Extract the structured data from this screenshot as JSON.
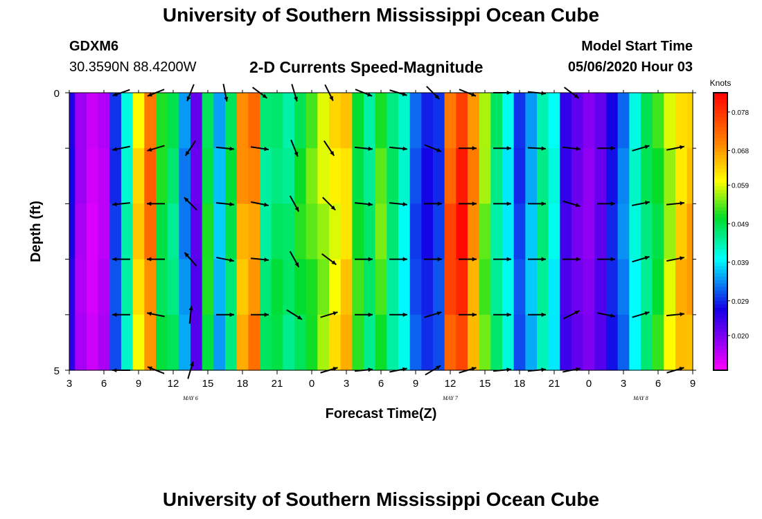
{
  "header": {
    "title": "University of Southern Mississippi Ocean Cube",
    "station": "GDXM6",
    "coordinates": "30.3590N 88.4200W",
    "chart_title": "2-D Currents Speed-Magnitude",
    "model_start_label": "Model Start Time",
    "model_start_time": "05/06/2020 Hour 03"
  },
  "footer": {
    "title": "University of Southern Mississippi Ocean Cube"
  },
  "chart_data": {
    "type": "heatmap",
    "title": "2-D Currents Speed-Magnitude",
    "xlabel": "Forecast Time(Z)",
    "ylabel": "Depth (ft)",
    "xlim": [
      0,
      54
    ],
    "ylim": [
      0,
      5
    ],
    "y_tick_labels": [
      "0",
      "5"
    ],
    "x_tick_labels": [
      "3",
      "6",
      "9",
      "12",
      "15",
      "18",
      "21",
      "0",
      "3",
      "6",
      "9",
      "12",
      "15",
      "18",
      "21",
      "0",
      "3",
      "6",
      "9"
    ],
    "date_labels": [
      {
        "text": "MAY 6",
        "hour": 10.5
      },
      {
        "text": "MAY 7",
        "hour": 33
      },
      {
        "text": "MAY 8",
        "hour": 49.5
      }
    ],
    "colorbar": {
      "units": "Knots",
      "min": 0.011,
      "max": 0.083,
      "tick_labels": [
        "0.078",
        "0.068",
        "0.059",
        "0.049",
        "0.039",
        "0.029",
        "0.020"
      ],
      "tick_values": [
        0.078,
        0.068,
        0.059,
        0.049,
        0.039,
        0.029,
        0.02
      ]
    },
    "depth_levels": [
      0,
      1,
      2,
      3,
      4,
      5
    ],
    "speed_by_hour": [
      [
        0,
        0.026
      ],
      [
        1,
        0.017
      ],
      [
        2,
        0.014
      ],
      [
        3,
        0.016
      ],
      [
        4,
        0.03
      ],
      [
        5,
        0.043
      ],
      [
        6,
        0.062
      ],
      [
        7,
        0.071
      ],
      [
        8,
        0.05
      ],
      [
        9,
        0.047
      ],
      [
        10,
        0.034
      ],
      [
        11,
        0.022
      ],
      [
        12,
        0.05
      ],
      [
        13,
        0.036
      ],
      [
        14,
        0.048
      ],
      [
        15,
        0.067
      ],
      [
        16,
        0.07
      ],
      [
        17,
        0.046
      ],
      [
        18,
        0.048
      ],
      [
        19,
        0.046
      ],
      [
        20,
        0.05
      ],
      [
        21,
        0.053
      ],
      [
        22,
        0.057
      ],
      [
        23,
        0.061
      ],
      [
        24,
        0.064
      ],
      [
        25,
        0.051
      ],
      [
        26,
        0.046
      ],
      [
        27,
        0.053
      ],
      [
        28,
        0.046
      ],
      [
        29,
        0.041
      ],
      [
        30,
        0.031
      ],
      [
        31,
        0.028
      ],
      [
        32,
        0.03
      ],
      [
        33,
        0.074
      ],
      [
        34,
        0.079
      ],
      [
        35,
        0.068
      ],
      [
        36,
        0.055
      ],
      [
        37,
        0.046
      ],
      [
        38,
        0.04
      ],
      [
        39,
        0.03
      ],
      [
        40,
        0.036
      ],
      [
        41,
        0.045
      ],
      [
        42,
        0.04
      ],
      [
        43,
        0.024
      ],
      [
        44,
        0.021
      ],
      [
        45,
        0.019
      ],
      [
        46,
        0.022
      ],
      [
        47,
        0.028
      ],
      [
        48,
        0.033
      ],
      [
        49,
        0.041
      ],
      [
        50,
        0.047
      ],
      [
        51,
        0.051
      ],
      [
        52,
        0.058
      ],
      [
        53,
        0.064
      ],
      [
        54,
        0.066
      ]
    ],
    "vectors": [
      {
        "hour": 4.5,
        "depth": 0,
        "u": -1,
        "v": -0.35
      },
      {
        "hour": 7.5,
        "depth": 0,
        "u": -1,
        "v": -0.4
      },
      {
        "hour": 10.5,
        "depth": 0,
        "u": -0.4,
        "v": -1
      },
      {
        "hour": 13.5,
        "depth": 0,
        "u": 0.2,
        "v": -1
      },
      {
        "hour": 16.5,
        "depth": 0,
        "u": 0.8,
        "v": -0.6
      },
      {
        "hour": 19.5,
        "depth": 0,
        "u": 0.3,
        "v": -1
      },
      {
        "hour": 22.5,
        "depth": 0,
        "u": 0.5,
        "v": -1
      },
      {
        "hour": 25.5,
        "depth": 0,
        "u": 1,
        "v": -0.4
      },
      {
        "hour": 28.5,
        "depth": 0,
        "u": 1,
        "v": -0.3
      },
      {
        "hour": 31.5,
        "depth": 0,
        "u": 0.7,
        "v": -0.7
      },
      {
        "hour": 34.5,
        "depth": 0,
        "u": 1,
        "v": -0.4
      },
      {
        "hour": 37.5,
        "depth": 0,
        "u": 1,
        "v": 0
      },
      {
        "hour": 40.5,
        "depth": 0,
        "u": 1,
        "v": -0.1
      },
      {
        "hour": 43.5,
        "depth": 0,
        "u": 0.8,
        "v": -0.6
      },
      {
        "hour": 4.5,
        "depth": 1,
        "u": -1,
        "v": -0.2
      },
      {
        "hour": 7.5,
        "depth": 1,
        "u": -1,
        "v": -0.3
      },
      {
        "hour": 10.5,
        "depth": 1,
        "u": -0.6,
        "v": -0.9
      },
      {
        "hour": 13.5,
        "depth": 1,
        "u": 1,
        "v": -0.1
      },
      {
        "hour": 16.5,
        "depth": 1,
        "u": 1,
        "v": -0.15
      },
      {
        "hour": 19.5,
        "depth": 1,
        "u": 0.4,
        "v": -1
      },
      {
        "hour": 22.5,
        "depth": 1,
        "u": 0.6,
        "v": -0.9
      },
      {
        "hour": 25.5,
        "depth": 1,
        "u": 1,
        "v": -0.1
      },
      {
        "hour": 28.5,
        "depth": 1,
        "u": 1,
        "v": -0.1
      },
      {
        "hour": 31.5,
        "depth": 1,
        "u": 1,
        "v": -0.4
      },
      {
        "hour": 34.5,
        "depth": 1,
        "u": 1,
        "v": 0
      },
      {
        "hour": 37.5,
        "depth": 1,
        "u": 1,
        "v": 0
      },
      {
        "hour": 40.5,
        "depth": 1,
        "u": 1,
        "v": -0.05
      },
      {
        "hour": 43.5,
        "depth": 1,
        "u": 1,
        "v": -0.1
      },
      {
        "hour": 46.5,
        "depth": 1,
        "u": 1,
        "v": 0
      },
      {
        "hour": 49.5,
        "depth": 1,
        "u": 1,
        "v": 0.3
      },
      {
        "hour": 52.5,
        "depth": 1,
        "u": 1,
        "v": 0.2
      },
      {
        "hour": 4.5,
        "depth": 2,
        "u": -1,
        "v": -0.1
      },
      {
        "hour": 7.5,
        "depth": 2,
        "u": -1,
        "v": 0
      },
      {
        "hour": 10.5,
        "depth": 2,
        "u": -0.7,
        "v": 0.7
      },
      {
        "hour": 13.5,
        "depth": 2,
        "u": 1,
        "v": -0.1
      },
      {
        "hour": 16.5,
        "depth": 2,
        "u": 1,
        "v": -0.2
      },
      {
        "hour": 19.5,
        "depth": 2,
        "u": 0.5,
        "v": -0.9
      },
      {
        "hour": 22.5,
        "depth": 2,
        "u": 0.7,
        "v": -0.7
      },
      {
        "hour": 25.5,
        "depth": 2,
        "u": 1,
        "v": -0.1
      },
      {
        "hour": 28.5,
        "depth": 2,
        "u": 1,
        "v": -0.1
      },
      {
        "hour": 31.5,
        "depth": 2,
        "u": 1,
        "v": 0
      },
      {
        "hour": 34.5,
        "depth": 2,
        "u": 1,
        "v": 0
      },
      {
        "hour": 37.5,
        "depth": 2,
        "u": 1,
        "v": 0
      },
      {
        "hour": 40.5,
        "depth": 2,
        "u": 1,
        "v": 0
      },
      {
        "hour": 43.5,
        "depth": 2,
        "u": 1,
        "v": -0.3
      },
      {
        "hour": 46.5,
        "depth": 2,
        "u": 1,
        "v": 0
      },
      {
        "hour": 49.5,
        "depth": 2,
        "u": 1,
        "v": 0.2
      },
      {
        "hour": 52.5,
        "depth": 2,
        "u": 1,
        "v": 0.1
      },
      {
        "hour": 4.5,
        "depth": 3,
        "u": -1,
        "v": 0
      },
      {
        "hour": 7.5,
        "depth": 3,
        "u": -1,
        "v": 0
      },
      {
        "hour": 10.5,
        "depth": 3,
        "u": -0.7,
        "v": 0.8
      },
      {
        "hour": 13.5,
        "depth": 3,
        "u": 1,
        "v": -0.2
      },
      {
        "hour": 16.5,
        "depth": 3,
        "u": 1,
        "v": -0.1
      },
      {
        "hour": 19.5,
        "depth": 3,
        "u": 0.5,
        "v": -0.9
      },
      {
        "hour": 22.5,
        "depth": 3,
        "u": 0.8,
        "v": -0.6
      },
      {
        "hour": 25.5,
        "depth": 3,
        "u": 1,
        "v": 0
      },
      {
        "hour": 28.5,
        "depth": 3,
        "u": 1,
        "v": 0
      },
      {
        "hour": 31.5,
        "depth": 3,
        "u": 1,
        "v": 0
      },
      {
        "hour": 34.5,
        "depth": 3,
        "u": 1,
        "v": 0
      },
      {
        "hour": 37.5,
        "depth": 3,
        "u": 1,
        "v": 0
      },
      {
        "hour": 40.5,
        "depth": 3,
        "u": 1,
        "v": 0
      },
      {
        "hour": 43.5,
        "depth": 3,
        "u": 1,
        "v": 0
      },
      {
        "hour": 46.5,
        "depth": 3,
        "u": 1,
        "v": 0
      },
      {
        "hour": 49.5,
        "depth": 3,
        "u": 1,
        "v": 0.3
      },
      {
        "hour": 52.5,
        "depth": 3,
        "u": 1,
        "v": 0.2
      },
      {
        "hour": 4.5,
        "depth": 4,
        "u": -1,
        "v": 0
      },
      {
        "hour": 7.5,
        "depth": 4,
        "u": -1,
        "v": 0.2
      },
      {
        "hour": 10.5,
        "depth": 4,
        "u": 0.1,
        "v": 1
      },
      {
        "hour": 13.5,
        "depth": 4,
        "u": 1,
        "v": 0
      },
      {
        "hour": 16.5,
        "depth": 4,
        "u": 1,
        "v": 0
      },
      {
        "hour": 19.5,
        "depth": 4,
        "u": 0.8,
        "v": -0.5
      },
      {
        "hour": 22.5,
        "depth": 4,
        "u": 1,
        "v": 0.3
      },
      {
        "hour": 25.5,
        "depth": 4,
        "u": 1,
        "v": 0
      },
      {
        "hour": 28.5,
        "depth": 4,
        "u": 1,
        "v": 0
      },
      {
        "hour": 31.5,
        "depth": 4,
        "u": 1,
        "v": 0.3
      },
      {
        "hour": 34.5,
        "depth": 4,
        "u": 1,
        "v": 0
      },
      {
        "hour": 37.5,
        "depth": 4,
        "u": 1,
        "v": 0
      },
      {
        "hour": 40.5,
        "depth": 4,
        "u": 1,
        "v": 0
      },
      {
        "hour": 43.5,
        "depth": 4,
        "u": 1,
        "v": 0.5
      },
      {
        "hour": 46.5,
        "depth": 4,
        "u": 1,
        "v": -0.2
      },
      {
        "hour": 49.5,
        "depth": 4,
        "u": 1,
        "v": 0.3
      },
      {
        "hour": 52.5,
        "depth": 4,
        "u": 1,
        "v": 0.1
      },
      {
        "hour": 4.5,
        "depth": 5,
        "u": -0.7,
        "v": 0
      },
      {
        "hour": 7.5,
        "depth": 5,
        "u": -1,
        "v": 0.4
      },
      {
        "hour": 10.5,
        "depth": 5,
        "u": 0.3,
        "v": 1
      },
      {
        "hour": 22.5,
        "depth": 5,
        "u": 1,
        "v": 0.3
      },
      {
        "hour": 25.5,
        "depth": 5,
        "u": 1,
        "v": 0.1
      },
      {
        "hour": 28.5,
        "depth": 5,
        "u": 1,
        "v": 0.2
      },
      {
        "hour": 31.5,
        "depth": 5,
        "u": 1,
        "v": 0.6
      },
      {
        "hour": 34.5,
        "depth": 5,
        "u": 1,
        "v": 0.3
      },
      {
        "hour": 37.5,
        "depth": 5,
        "u": 1,
        "v": 0.1
      },
      {
        "hour": 40.5,
        "depth": 5,
        "u": 1,
        "v": 0.1
      },
      {
        "hour": 43.5,
        "depth": 5,
        "u": 1,
        "v": 0.2
      },
      {
        "hour": 52.5,
        "depth": 5,
        "u": 1,
        "v": 0.3
      }
    ]
  }
}
